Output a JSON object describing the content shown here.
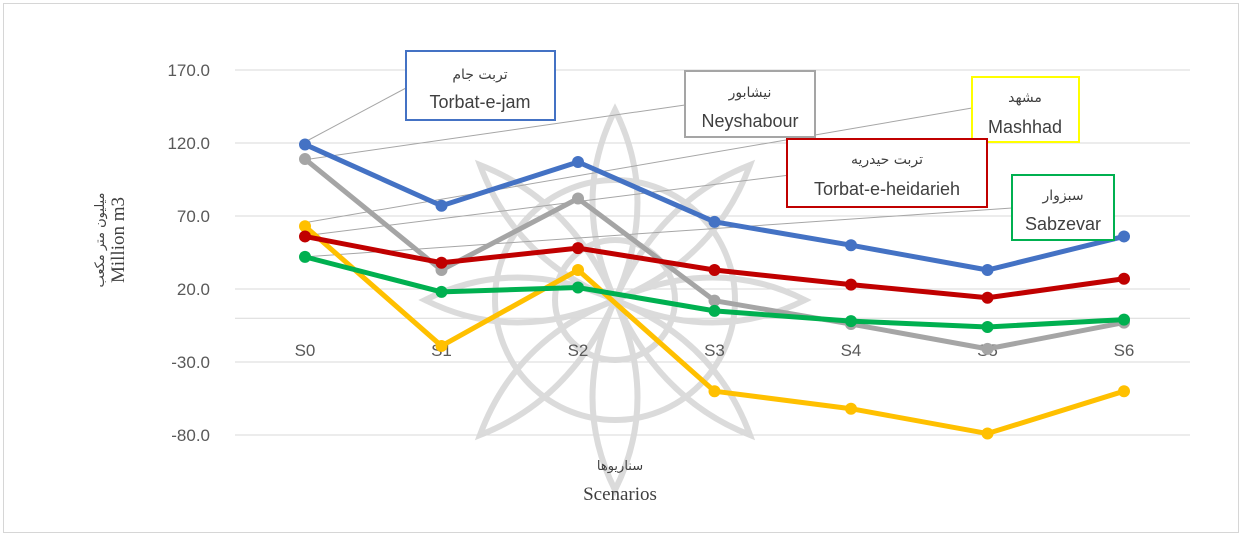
{
  "chart_data": {
    "type": "line",
    "xlabel": "Scenarios",
    "xlabel_fa": "سناریوها",
    "ylabel": "Million m3",
    "ylabel_fa": "میلیون متر مکعب",
    "categories": [
      "S0",
      "S1",
      "S2",
      "S3",
      "S4",
      "S5",
      "S6"
    ],
    "ylim": [
      -80,
      170
    ],
    "yticks": [
      "170.0",
      "120.0",
      "70.0",
      "20.0",
      "-30.0",
      "-80.0"
    ],
    "grid": true,
    "series": [
      {
        "name": "Torbat-e-jam",
        "name_fa": "تربت جام",
        "color": "#4472c4",
        "values": [
          119,
          77,
          107,
          66,
          50,
          33,
          56
        ]
      },
      {
        "name": "Neyshabour",
        "name_fa": "نیشابور",
        "color": "#a5a5a5",
        "values": [
          109,
          33,
          82,
          12,
          -4,
          -21,
          -3
        ]
      },
      {
        "name": "Mashhad",
        "name_fa": "مشهد",
        "color": "#ffc000",
        "values": [
          63,
          -19,
          33,
          -50,
          -62,
          -79,
          -50
        ]
      },
      {
        "name": "Torbat-e-heidarieh",
        "name_fa": "تربت حیدریه",
        "color": "#c00000",
        "values": [
          56,
          38,
          48,
          33,
          23,
          14,
          27
        ]
      },
      {
        "name": "Sabzevar",
        "name_fa": "سبزوار",
        "color": "#00b050",
        "values": [
          42,
          18,
          21,
          5,
          -2,
          -6,
          -1
        ]
      }
    ]
  }
}
